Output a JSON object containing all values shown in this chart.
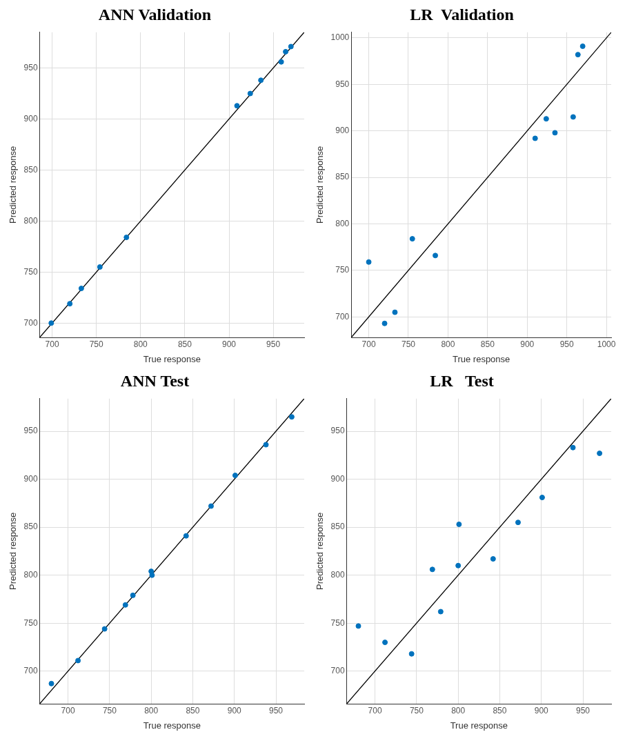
{
  "chart_data": [
    {
      "type": "scatter",
      "title": "ANN Validation",
      "xlabel": "True response",
      "ylabel": "Predicted response",
      "xlim": [
        686,
        985
      ],
      "ylim": [
        686,
        985
      ],
      "xticks": [
        700,
        750,
        800,
        850,
        900,
        950
      ],
      "yticks": [
        700,
        750,
        800,
        850,
        900,
        950
      ],
      "grid": true,
      "series": [
        {
          "color": "#0072bd",
          "marker": "circle",
          "x": [
            699,
            720,
            733,
            754,
            784,
            909,
            924,
            936,
            959,
            964,
            970
          ],
          "values": [
            700,
            719,
            734,
            755,
            784,
            913,
            925,
            938,
            956,
            966,
            971
          ]
        },
        {
          "type": "line",
          "color": "#000000",
          "x": [
            686,
            985
          ],
          "values": [
            686,
            985
          ]
        }
      ]
    },
    {
      "type": "scatter",
      "title": "LR  Validation",
      "xlabel": "True response",
      "ylabel": "Predicted response",
      "xlim": [
        678,
        1006
      ],
      "ylim": [
        678,
        1006
      ],
      "xticks": [
        700,
        750,
        800,
        850,
        900,
        950,
        1000
      ],
      "yticks": [
        700,
        750,
        800,
        850,
        900,
        950,
        1000
      ],
      "grid": true,
      "series": [
        {
          "color": "#0072bd",
          "marker": "circle",
          "x": [
            700,
            720,
            733,
            755,
            784,
            910,
            924,
            935,
            958,
            964,
            970
          ],
          "values": [
            759,
            693,
            705,
            784,
            766,
            892,
            913,
            898,
            915,
            982,
            991
          ]
        },
        {
          "type": "line",
          "color": "#000000",
          "x": [
            678,
            1006
          ],
          "values": [
            678,
            1006
          ]
        }
      ]
    },
    {
      "type": "scatter",
      "title": "ANN Test",
      "xlabel": "True response",
      "ylabel": "Predicted response",
      "xlim": [
        666,
        984
      ],
      "ylim": [
        666,
        984
      ],
      "xticks": [
        700,
        750,
        800,
        850,
        900,
        950
      ],
      "yticks": [
        700,
        750,
        800,
        850,
        900,
        950
      ],
      "grid": true,
      "series": [
        {
          "color": "#0072bd",
          "marker": "circle",
          "x": [
            680,
            712,
            744,
            769,
            778,
            800,
            801,
            842,
            872,
            901,
            938,
            969
          ],
          "values": [
            687,
            711,
            744,
            769,
            779,
            804,
            800,
            841,
            872,
            904,
            936,
            965
          ]
        },
        {
          "type": "line",
          "color": "#000000",
          "x": [
            666,
            984
          ],
          "values": [
            666,
            984
          ]
        }
      ]
    },
    {
      "type": "scatter",
      "title": "LR   Test",
      "xlabel": "True response",
      "ylabel": "Predicted response",
      "xlim": [
        666,
        984
      ],
      "ylim": [
        666,
        984
      ],
      "xticks": [
        700,
        750,
        800,
        850,
        900,
        950
      ],
      "yticks": [
        700,
        750,
        800,
        850,
        900,
        950
      ],
      "grid": true,
      "series": [
        {
          "color": "#0072bd",
          "marker": "circle",
          "x": [
            680,
            712,
            744,
            769,
            779,
            800,
            801,
            842,
            872,
            901,
            938,
            970
          ],
          "values": [
            747,
            730,
            718,
            806,
            762,
            810,
            853,
            817,
            855,
            881,
            933,
            927
          ]
        },
        {
          "type": "line",
          "color": "#000000",
          "x": [
            666,
            984
          ],
          "values": [
            666,
            984
          ]
        }
      ]
    }
  ]
}
